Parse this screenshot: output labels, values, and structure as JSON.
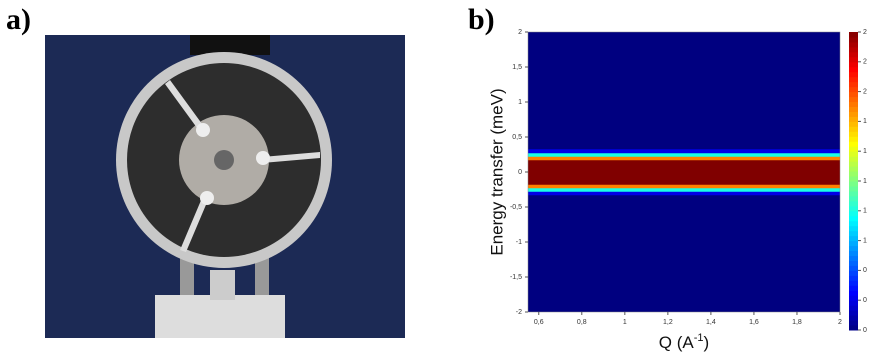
{
  "panels": {
    "a": "a)",
    "b": "b)"
  },
  "chart_data": {
    "type": "heatmap",
    "xlabel_parts": [
      "Q (A",
      "-1",
      ")"
    ],
    "ylabel": "Energy transfer (meV)",
    "xlim": [
      0.55,
      2
    ],
    "ylim": [
      -2,
      2
    ],
    "zlim": [
      0,
      2
    ],
    "xticks": [
      {
        "value": 0.6,
        "label": "0,6"
      },
      {
        "value": 0.8,
        "label": "0,8"
      },
      1,
      {
        "value": 1.2,
        "label": "1,2"
      },
      {
        "value": 1.4,
        "label": "1,4"
      },
      {
        "value": 1.6,
        "label": "1,6"
      },
      {
        "value": 1.8,
        "label": "1,8"
      },
      2
    ],
    "yticks": [
      -2,
      {
        "value": -1.5,
        "label": "-1,5"
      },
      -1,
      {
        "value": -0.5,
        "label": "-0,5"
      },
      0,
      {
        "value": 0.5,
        "label": "0,5"
      },
      1,
      {
        "value": 1.5,
        "label": "1,5"
      },
      2
    ],
    "zticks": [
      2,
      {
        "value": 1.8,
        "label": "2"
      },
      {
        "value": 1.6,
        "label": "2"
      },
      {
        "value": 1.4,
        "label": "1"
      },
      {
        "value": 1.2,
        "label": "1"
      },
      1,
      {
        "value": 0.8,
        "label": "1"
      },
      {
        "value": 0.6,
        "label": "1"
      },
      {
        "value": 0.4,
        "label": "0"
      },
      {
        "value": 0.2,
        "label": "0"
      },
      0
    ],
    "y": [
      -0.3,
      -0.25,
      -0.2,
      -0.15,
      -0.1,
      -0.05,
      0,
      0.05,
      0.1,
      0.15,
      0.2,
      0.25,
      0.3
    ],
    "values": [
      0.2,
      0.8,
      1.5,
      2,
      2,
      2,
      2,
      2,
      2,
      2,
      1.5,
      0.8,
      0.2
    ],
    "colormap": "jet"
  }
}
